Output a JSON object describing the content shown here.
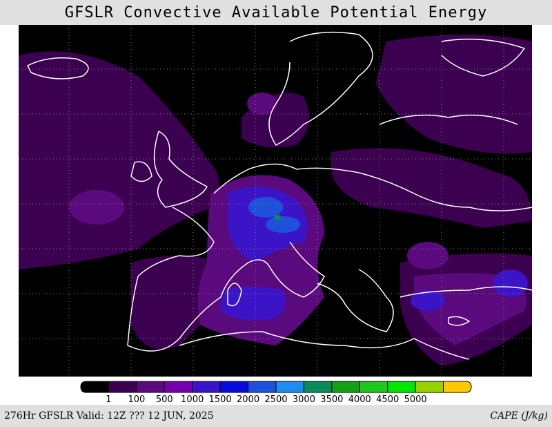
{
  "header": {
    "title": "GFSLR Convective Available Potential Energy"
  },
  "colorbar": {
    "levels": [
      1,
      100,
      500,
      1000,
      1500,
      2000,
      2500,
      3000,
      3500,
      4000,
      4500,
      5000
    ],
    "colors": [
      "#000000",
      "#3c0050",
      "#5a0a7d",
      "#7800aa",
      "#3c14c8",
      "#0a0adc",
      "#1e50dc",
      "#1e8cf0",
      "#0a8c5a",
      "#14a014",
      "#1ec81e",
      "#00e600",
      "#96d200",
      "#ffc800"
    ]
  },
  "footer": {
    "left": "276Hr GFSLR Valid: 12Z ??? 12 JUN, 2025",
    "right": "CAPE (J/kg)"
  }
}
